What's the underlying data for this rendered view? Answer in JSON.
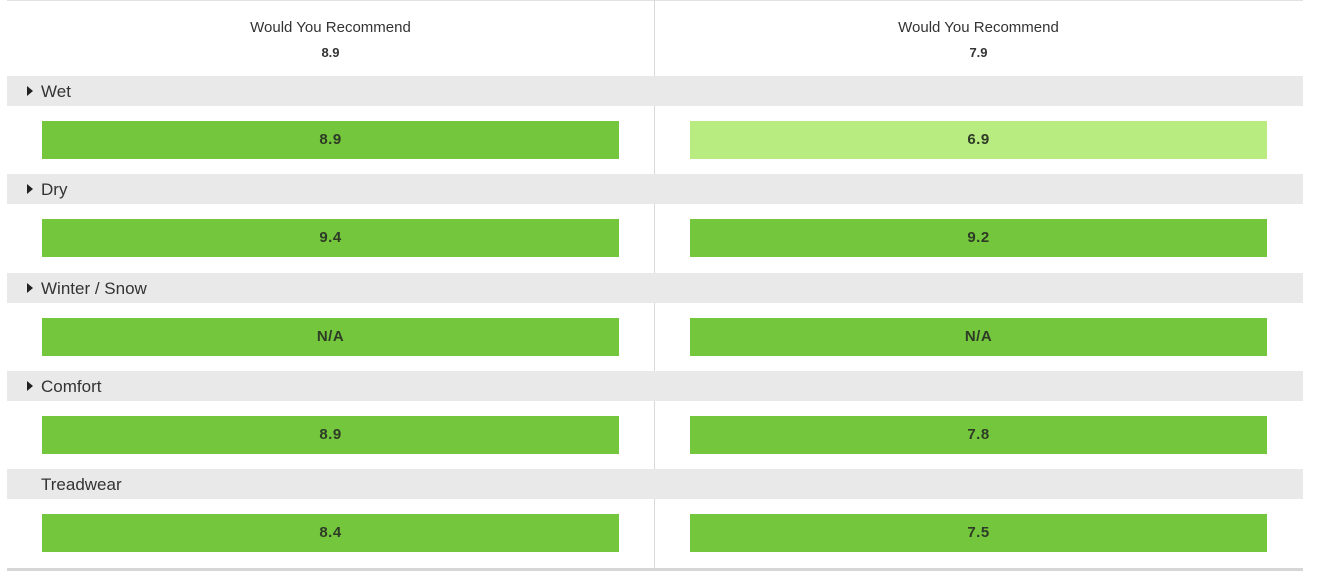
{
  "header": {
    "columns": [
      {
        "title": "Would You Recommend",
        "score": "8.9"
      },
      {
        "title": "Would You Recommend",
        "score": "7.9"
      }
    ]
  },
  "categories": [
    {
      "label": "Wet",
      "expandable": true,
      "values": [
        "8.9",
        "6.9"
      ],
      "levels": [
        "high",
        "medium"
      ]
    },
    {
      "label": "Dry",
      "expandable": true,
      "values": [
        "9.4",
        "9.2"
      ],
      "levels": [
        "high",
        "high"
      ]
    },
    {
      "label": "Winter / Snow",
      "expandable": true,
      "values": [
        "N/A",
        "N/A"
      ],
      "levels": [
        "high",
        "high"
      ]
    },
    {
      "label": "Comfort",
      "expandable": true,
      "values": [
        "8.9",
        "7.8"
      ],
      "levels": [
        "high",
        "high"
      ]
    },
    {
      "label": "Treadwear",
      "expandable": false,
      "values": [
        "8.4",
        "7.5"
      ],
      "levels": [
        "high",
        "high"
      ]
    }
  ],
  "colors": {
    "bar_high": "#74c63c",
    "bar_medium": "#b8ec80",
    "category_header_bg": "#e9e9e9",
    "divider": "#d8d8d8"
  },
  "icons": {
    "expand": "caret-right-icon"
  }
}
